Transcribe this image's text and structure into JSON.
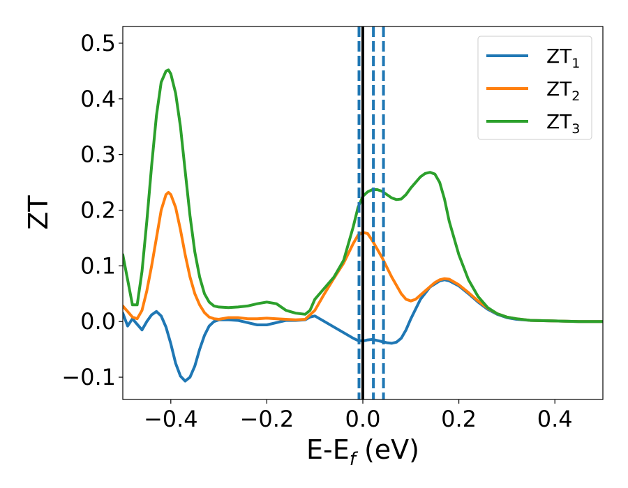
{
  "chart_data": {
    "type": "line",
    "xlabel": "E-E",
    "xlabel_sub": "f",
    "xlabel_suffix": " (eV)",
    "ylabel": "ZT",
    "xlim": [
      -0.5,
      0.5
    ],
    "ylim": [
      -0.14,
      0.53
    ],
    "xticks": [
      -0.4,
      -0.2,
      0.0,
      0.2,
      0.4
    ],
    "xtick_labels": [
      "−0.4",
      "−0.2",
      "0.0",
      "0.2",
      "0.4"
    ],
    "yticks": [
      -0.1,
      0.0,
      0.1,
      0.2,
      0.3,
      0.4,
      0.5
    ],
    "ytick_labels": [
      "−0.1",
      "0.0",
      "0.1",
      "0.2",
      "0.3",
      "0.4",
      "0.5"
    ],
    "grid": false,
    "legend_position": "top-right",
    "series": [
      {
        "name": "ZT",
        "name_sub": "1",
        "color": "#1f77b4",
        "points": [
          [
            -0.5,
            0.015
          ],
          [
            -0.49,
            -0.008
          ],
          [
            -0.48,
            0.005
          ],
          [
            -0.47,
            -0.005
          ],
          [
            -0.46,
            -0.015
          ],
          [
            -0.45,
            0.0
          ],
          [
            -0.44,
            0.012
          ],
          [
            -0.43,
            0.018
          ],
          [
            -0.42,
            0.01
          ],
          [
            -0.41,
            -0.01
          ],
          [
            -0.4,
            -0.04
          ],
          [
            -0.39,
            -0.075
          ],
          [
            -0.38,
            -0.098
          ],
          [
            -0.37,
            -0.107
          ],
          [
            -0.36,
            -0.1
          ],
          [
            -0.35,
            -0.08
          ],
          [
            -0.34,
            -0.05
          ],
          [
            -0.33,
            -0.025
          ],
          [
            -0.32,
            -0.008
          ],
          [
            -0.31,
            0.0
          ],
          [
            -0.3,
            0.003
          ],
          [
            -0.28,
            0.003
          ],
          [
            -0.26,
            0.002
          ],
          [
            -0.24,
            -0.002
          ],
          [
            -0.22,
            -0.006
          ],
          [
            -0.2,
            -0.006
          ],
          [
            -0.18,
            -0.002
          ],
          [
            -0.16,
            0.002
          ],
          [
            -0.14,
            0.002
          ],
          [
            -0.12,
            0.003
          ],
          [
            -0.11,
            0.008
          ],
          [
            -0.1,
            0.01
          ],
          [
            -0.08,
            0.0
          ],
          [
            -0.06,
            -0.01
          ],
          [
            -0.04,
            -0.02
          ],
          [
            -0.02,
            -0.03
          ],
          [
            -0.01,
            -0.034
          ],
          [
            0.0,
            -0.035
          ],
          [
            0.01,
            -0.033
          ],
          [
            0.02,
            -0.032
          ],
          [
            0.03,
            -0.034
          ],
          [
            0.04,
            -0.036
          ],
          [
            0.05,
            -0.038
          ],
          [
            0.06,
            -0.039
          ],
          [
            0.07,
            -0.037
          ],
          [
            0.08,
            -0.03
          ],
          [
            0.09,
            -0.015
          ],
          [
            0.1,
            0.005
          ],
          [
            0.12,
            0.04
          ],
          [
            0.14,
            0.062
          ],
          [
            0.16,
            0.073
          ],
          [
            0.17,
            0.075
          ],
          [
            0.18,
            0.073
          ],
          [
            0.2,
            0.064
          ],
          [
            0.22,
            0.05
          ],
          [
            0.24,
            0.035
          ],
          [
            0.26,
            0.022
          ],
          [
            0.28,
            0.013
          ],
          [
            0.3,
            0.007
          ],
          [
            0.32,
            0.004
          ],
          [
            0.35,
            0.002
          ],
          [
            0.4,
            0.001
          ],
          [
            0.45,
            0.0
          ],
          [
            0.5,
            0.0
          ]
        ]
      },
      {
        "name": "ZT",
        "name_sub": "2",
        "color": "#ff7f0e",
        "points": [
          [
            -0.5,
            0.028
          ],
          [
            -0.49,
            0.018
          ],
          [
            -0.48,
            0.008
          ],
          [
            -0.47,
            0.005
          ],
          [
            -0.46,
            0.02
          ],
          [
            -0.45,
            0.055
          ],
          [
            -0.44,
            0.1
          ],
          [
            -0.43,
            0.15
          ],
          [
            -0.42,
            0.2
          ],
          [
            -0.41,
            0.228
          ],
          [
            -0.405,
            0.232
          ],
          [
            -0.4,
            0.228
          ],
          [
            -0.39,
            0.205
          ],
          [
            -0.38,
            0.165
          ],
          [
            -0.37,
            0.12
          ],
          [
            -0.36,
            0.08
          ],
          [
            -0.35,
            0.05
          ],
          [
            -0.34,
            0.03
          ],
          [
            -0.33,
            0.016
          ],
          [
            -0.32,
            0.008
          ],
          [
            -0.31,
            0.005
          ],
          [
            -0.3,
            0.004
          ],
          [
            -0.28,
            0.007
          ],
          [
            -0.26,
            0.007
          ],
          [
            -0.24,
            0.005
          ],
          [
            -0.22,
            0.005
          ],
          [
            -0.2,
            0.006
          ],
          [
            -0.18,
            0.005
          ],
          [
            -0.16,
            0.004
          ],
          [
            -0.14,
            0.003
          ],
          [
            -0.12,
            0.004
          ],
          [
            -0.1,
            0.02
          ],
          [
            -0.08,
            0.05
          ],
          [
            -0.06,
            0.078
          ],
          [
            -0.04,
            0.105
          ],
          [
            -0.02,
            0.14
          ],
          [
            -0.01,
            0.155
          ],
          [
            0.0,
            0.16
          ],
          [
            0.01,
            0.158
          ],
          [
            0.02,
            0.145
          ],
          [
            0.04,
            0.115
          ],
          [
            0.06,
            0.08
          ],
          [
            0.08,
            0.05
          ],
          [
            0.09,
            0.04
          ],
          [
            0.1,
            0.037
          ],
          [
            0.11,
            0.04
          ],
          [
            0.13,
            0.055
          ],
          [
            0.15,
            0.07
          ],
          [
            0.16,
            0.075
          ],
          [
            0.17,
            0.077
          ],
          [
            0.18,
            0.076
          ],
          [
            0.2,
            0.066
          ],
          [
            0.22,
            0.052
          ],
          [
            0.24,
            0.037
          ],
          [
            0.26,
            0.024
          ],
          [
            0.28,
            0.014
          ],
          [
            0.3,
            0.008
          ],
          [
            0.32,
            0.005
          ],
          [
            0.35,
            0.002
          ],
          [
            0.4,
            0.001
          ],
          [
            0.45,
            0.0
          ],
          [
            0.5,
            0.0
          ]
        ]
      },
      {
        "name": "ZT",
        "name_sub": "3",
        "color": "#2ca02c",
        "points": [
          [
            -0.5,
            0.12
          ],
          [
            -0.49,
            0.075
          ],
          [
            -0.48,
            0.03
          ],
          [
            -0.47,
            0.03
          ],
          [
            -0.46,
            0.09
          ],
          [
            -0.45,
            0.18
          ],
          [
            -0.44,
            0.28
          ],
          [
            -0.43,
            0.37
          ],
          [
            -0.42,
            0.43
          ],
          [
            -0.41,
            0.45
          ],
          [
            -0.405,
            0.452
          ],
          [
            -0.4,
            0.445
          ],
          [
            -0.39,
            0.41
          ],
          [
            -0.38,
            0.35
          ],
          [
            -0.37,
            0.27
          ],
          [
            -0.36,
            0.19
          ],
          [
            -0.35,
            0.125
          ],
          [
            -0.34,
            0.08
          ],
          [
            -0.33,
            0.05
          ],
          [
            -0.32,
            0.035
          ],
          [
            -0.31,
            0.028
          ],
          [
            -0.3,
            0.026
          ],
          [
            -0.28,
            0.025
          ],
          [
            -0.26,
            0.026
          ],
          [
            -0.24,
            0.028
          ],
          [
            -0.22,
            0.032
          ],
          [
            -0.2,
            0.035
          ],
          [
            -0.18,
            0.032
          ],
          [
            -0.16,
            0.02
          ],
          [
            -0.14,
            0.015
          ],
          [
            -0.12,
            0.013
          ],
          [
            -0.11,
            0.02
          ],
          [
            -0.1,
            0.04
          ],
          [
            -0.08,
            0.06
          ],
          [
            -0.06,
            0.08
          ],
          [
            -0.04,
            0.11
          ],
          [
            -0.02,
            0.17
          ],
          [
            -0.01,
            0.205
          ],
          [
            0.0,
            0.225
          ],
          [
            0.01,
            0.233
          ],
          [
            0.02,
            0.237
          ],
          [
            0.03,
            0.237
          ],
          [
            0.04,
            0.234
          ],
          [
            0.05,
            0.228
          ],
          [
            0.06,
            0.222
          ],
          [
            0.07,
            0.219
          ],
          [
            0.08,
            0.22
          ],
          [
            0.09,
            0.228
          ],
          [
            0.1,
            0.24
          ],
          [
            0.12,
            0.26
          ],
          [
            0.13,
            0.266
          ],
          [
            0.14,
            0.268
          ],
          [
            0.15,
            0.265
          ],
          [
            0.16,
            0.25
          ],
          [
            0.17,
            0.22
          ],
          [
            0.18,
            0.18
          ],
          [
            0.2,
            0.12
          ],
          [
            0.22,
            0.075
          ],
          [
            0.24,
            0.045
          ],
          [
            0.26,
            0.025
          ],
          [
            0.28,
            0.014
          ],
          [
            0.3,
            0.008
          ],
          [
            0.32,
            0.005
          ],
          [
            0.35,
            0.002
          ],
          [
            0.4,
            0.001
          ],
          [
            0.45,
            0.0
          ],
          [
            0.5,
            0.0
          ]
        ]
      }
    ],
    "vlines": [
      {
        "x": 0.0,
        "color": "#000000",
        "style": "solid"
      },
      {
        "x": -0.008,
        "color": "#1f77b4",
        "style": "dashed"
      },
      {
        "x": 0.022,
        "color": "#1f77b4",
        "style": "dashed"
      },
      {
        "x": 0.043,
        "color": "#1f77b4",
        "style": "dashed"
      }
    ]
  }
}
